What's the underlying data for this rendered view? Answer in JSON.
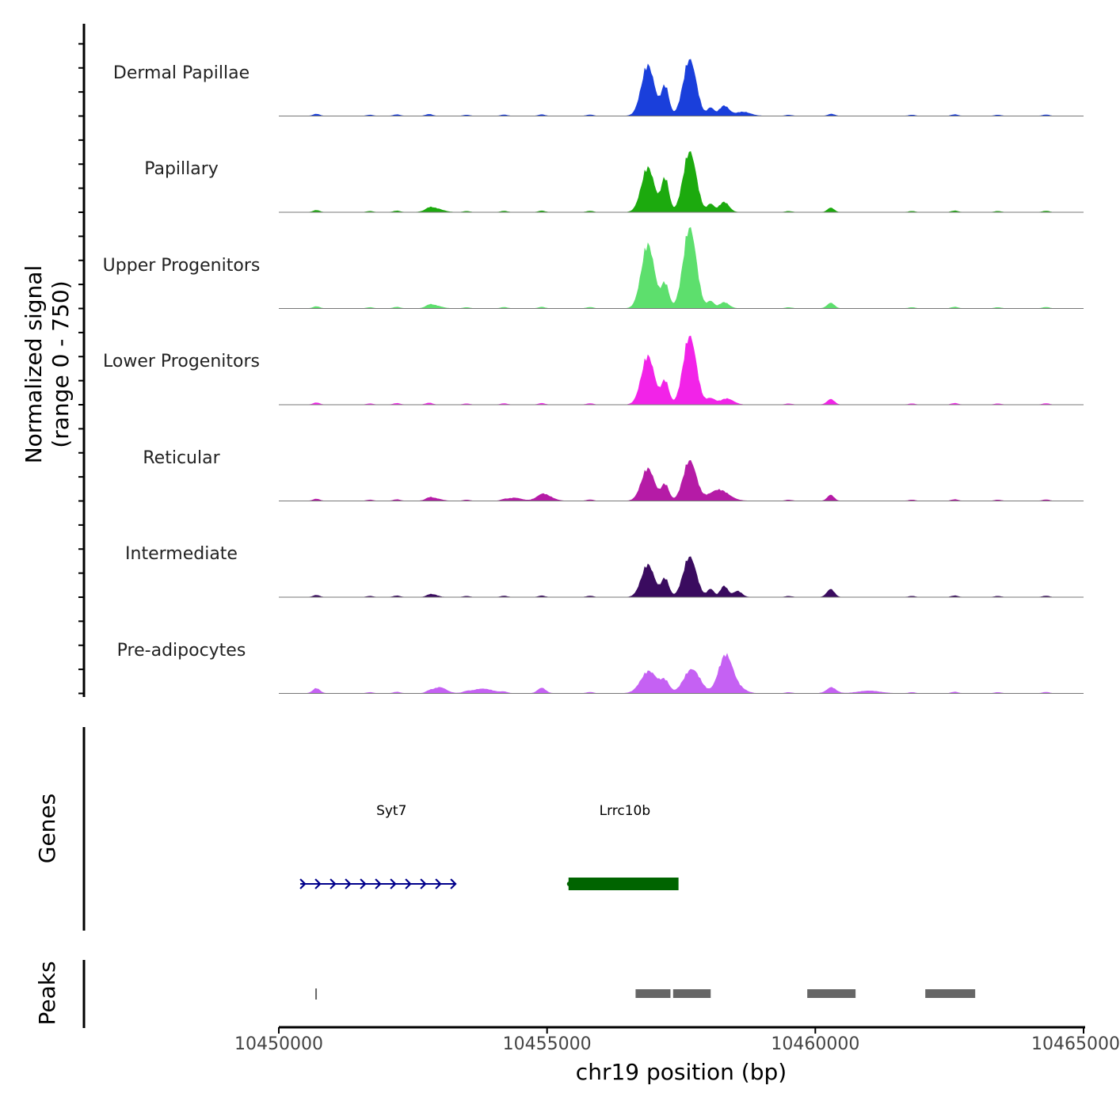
{
  "chart_data": {
    "type": "area",
    "title": "",
    "ylabel_line1": "Normalized signal",
    "ylabel_line2": "(range 0 - 750)",
    "ylim": [
      0,
      750
    ],
    "xlabel": "chr19 position (bp)",
    "xlim": [
      10450000,
      10465000
    ],
    "xticks": [
      {
        "value": 10450000,
        "label": "10450000"
      },
      {
        "value": 10455000,
        "label": "10455000"
      },
      {
        "value": 10460000,
        "label": "10460000"
      },
      {
        "value": 10465000,
        "label": "10465000"
      }
    ],
    "background_peaks": [
      [
        10450700,
        20
      ],
      [
        10451700,
        10
      ],
      [
        10452200,
        14
      ],
      [
        10452800,
        18
      ],
      [
        10453500,
        10
      ],
      [
        10454200,
        12
      ],
      [
        10454900,
        14
      ],
      [
        10455800,
        12
      ],
      [
        10459500,
        10
      ],
      [
        10460300,
        20
      ],
      [
        10461800,
        10
      ],
      [
        10462600,
        14
      ],
      [
        10463400,
        10
      ],
      [
        10464300,
        12
      ]
    ],
    "series": [
      {
        "name": "Dermal Papillae",
        "color": "#1a3fdb",
        "peaks": [
          [
            10456880,
            500,
            120
          ],
          [
            10457200,
            290,
            70
          ],
          [
            10457660,
            560,
            120
          ],
          [
            10458050,
            80,
            60
          ],
          [
            10458300,
            100,
            90
          ],
          [
            10458650,
            40,
            140
          ]
        ]
      },
      {
        "name": "Papillary",
        "color": "#1caa0e",
        "peaks": [
          [
            10452900,
            40,
            140
          ],
          [
            10456880,
            440,
            120
          ],
          [
            10457200,
            330,
            70
          ],
          [
            10457660,
            600,
            120
          ],
          [
            10458050,
            80,
            60
          ],
          [
            10458300,
            100,
            90
          ],
          [
            10460280,
            25,
            60
          ]
        ]
      },
      {
        "name": "Upper Progenitors",
        "color": "#5ddf6d",
        "peaks": [
          [
            10452900,
            30,
            120
          ],
          [
            10456880,
            630,
            120
          ],
          [
            10457200,
            240,
            70
          ],
          [
            10457660,
            800,
            120
          ],
          [
            10458050,
            70,
            60
          ],
          [
            10458300,
            60,
            90
          ],
          [
            10460280,
            35,
            70
          ]
        ]
      },
      {
        "name": "Lower Progenitors",
        "color": "#f223e8",
        "peaks": [
          [
            10456880,
            480,
            120
          ],
          [
            10457200,
            230,
            70
          ],
          [
            10457660,
            680,
            120
          ],
          [
            10458050,
            60,
            80
          ],
          [
            10458350,
            60,
            120
          ],
          [
            10460280,
            35,
            70
          ]
        ]
      },
      {
        "name": "Reticular",
        "color": "#b51ba6",
        "peaks": [
          [
            10452900,
            25,
            120
          ],
          [
            10454400,
            30,
            120
          ],
          [
            10454950,
            60,
            140
          ],
          [
            10456880,
            320,
            120
          ],
          [
            10457200,
            160,
            70
          ],
          [
            10457660,
            400,
            120
          ],
          [
            10458200,
            110,
            180
          ],
          [
            10460280,
            40,
            60
          ]
        ]
      },
      {
        "name": "Intermediate",
        "color": "#3a0b5f",
        "peaks": [
          [
            10452900,
            20,
            80
          ],
          [
            10456880,
            320,
            120
          ],
          [
            10457200,
            180,
            70
          ],
          [
            10457660,
            400,
            120
          ],
          [
            10458050,
            80,
            60
          ],
          [
            10458300,
            110,
            70
          ],
          [
            10458550,
            60,
            80
          ],
          [
            10460280,
            60,
            70
          ]
        ]
      },
      {
        "name": "Pre-adipocytes",
        "color": "#c561f3",
        "peaks": [
          [
            10450700,
            30,
            70
          ],
          [
            10453000,
            60,
            120
          ],
          [
            10453800,
            45,
            200
          ],
          [
            10454900,
            40,
            80
          ],
          [
            10456900,
            220,
            150
          ],
          [
            10457200,
            110,
            80
          ],
          [
            10457700,
            240,
            150
          ],
          [
            10458330,
            380,
            130
          ],
          [
            10458600,
            40,
            120
          ],
          [
            10460300,
            40,
            100
          ],
          [
            10461000,
            25,
            200
          ]
        ]
      }
    ],
    "genes_label": "Genes",
    "genes": [
      {
        "name": "Syt7",
        "start": 10450400,
        "end": 10453300,
        "strand": "+",
        "color": "#00008b",
        "label_x": 10452100
      },
      {
        "name": "Lrrc10b",
        "start": 10455400,
        "end": 10457450,
        "strand": "+",
        "color": "#006400",
        "label_x": 10456450
      }
    ],
    "peaks_label": "Peaks",
    "peak_regions": [
      {
        "start": 10450680,
        "end": 10450720
      },
      {
        "start": 10456650,
        "end": 10457300
      },
      {
        "start": 10457350,
        "end": 10458050
      },
      {
        "start": 10459850,
        "end": 10460750
      },
      {
        "start": 10462050,
        "end": 10462980
      }
    ]
  }
}
